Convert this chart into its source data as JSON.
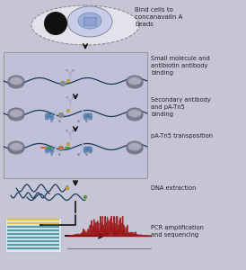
{
  "bg_color": "#c5c5d5",
  "panel_color": "#c0c0d8",
  "panel_border": "#999999",
  "arrow_color": "#111111",
  "text_color": "#222222",
  "dna_color": "#1a3a5c",
  "nucleosome_outer": "#8a8a9a",
  "nucleosome_inner": "#aaaabc",
  "small_mol_color": "#d4a030",
  "antibody_color": "#aaaacc",
  "secondary_ab_color": "#b0b8d8",
  "paTn5_color": "#5588bb",
  "bead_color": "#111111",
  "cell_outer": "#c8cce8",
  "cell_inner": "#9ab0d8",
  "gel_yellow": "#e8c040",
  "gel_blue": "#5599aa",
  "seq_color": "#991111",
  "cut_orange": "#e06020",
  "cut_green": "#40a030",
  "steps": [
    "Bind cells to\nconcanavalin A\nbeads",
    "Small molecule and\nantibiotin antibody\nbinding",
    "Secondary antibody\nand pA-Tn5\nbinding",
    "pA-Tn5 transposition",
    "DNA extraction",
    "PCR amplification\nand sequencing"
  ],
  "figw": 2.74,
  "figh": 3.0,
  "dpi": 100
}
